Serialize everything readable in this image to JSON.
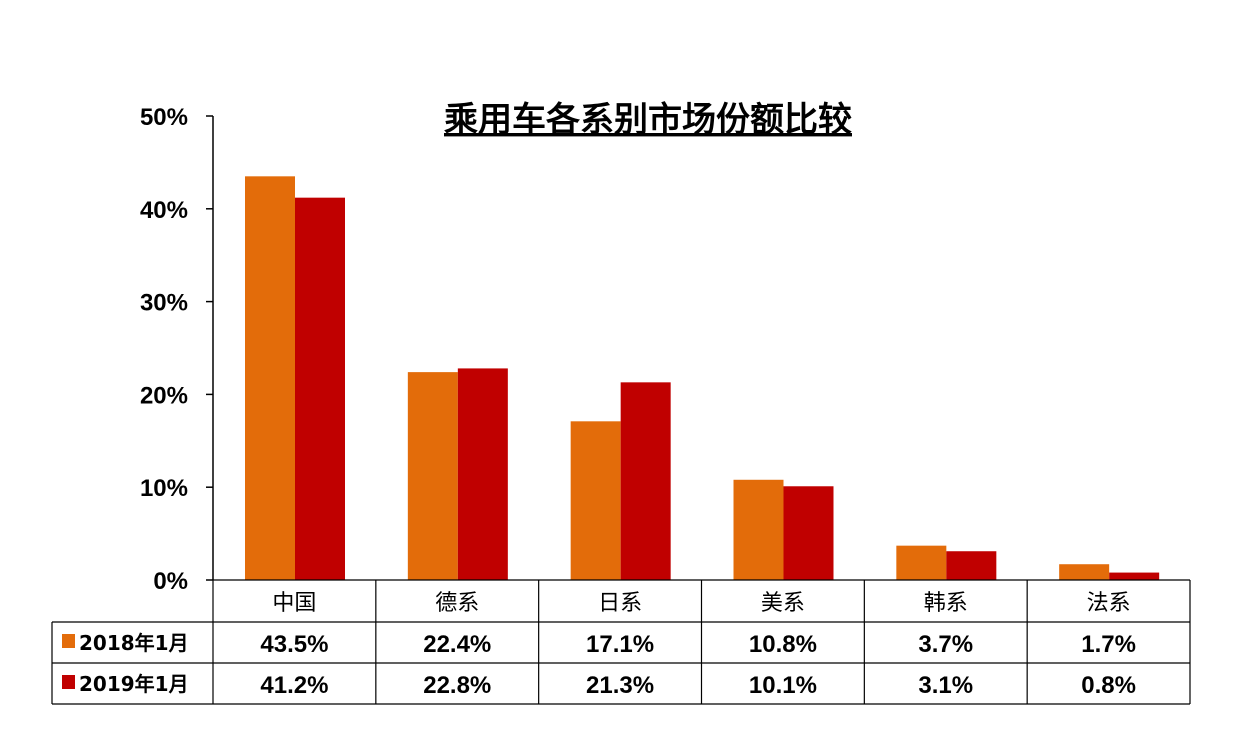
{
  "chart_data": {
    "type": "bar",
    "title": "乘用车各系别市场份额比较",
    "xlabel": "",
    "ylabel": "",
    "categories": [
      "中国",
      "德系",
      "日系",
      "美系",
      "韩系",
      "法系"
    ],
    "series": [
      {
        "name": "2018年1月",
        "color": "#E36C0A",
        "values": [
          43.5,
          22.4,
          17.1,
          10.8,
          3.7,
          1.7
        ],
        "labels": [
          "43.5%",
          "22.4%",
          "17.1%",
          "10.8%",
          "3.7%",
          "1.7%"
        ]
      },
      {
        "name": "2019年1月",
        "color": "#C00000",
        "values": [
          41.2,
          22.8,
          21.3,
          10.1,
          3.1,
          0.8
        ],
        "labels": [
          "41.2%",
          "22.8%",
          "21.3%",
          "10.1%",
          "3.1%",
          "0.8%"
        ]
      }
    ],
    "ylim": [
      0,
      50
    ],
    "yticks": [
      0,
      10,
      20,
      30,
      40,
      50
    ],
    "ytick_labels": [
      "0%",
      "10%",
      "20%",
      "30%",
      "40%",
      "50%"
    ],
    "grid": false,
    "legend": "data-table"
  }
}
